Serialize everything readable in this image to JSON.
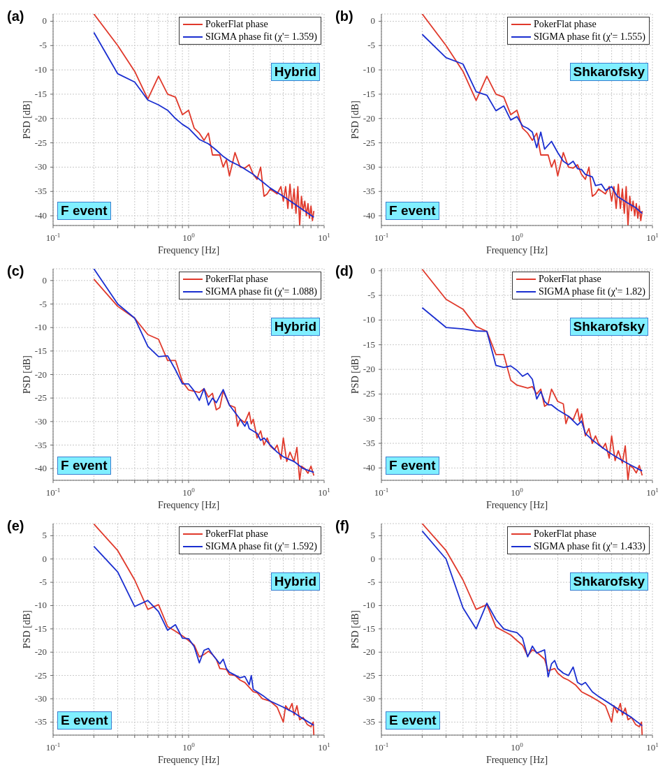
{
  "chart_data": [
    {
      "type": "line",
      "title": "(a)",
      "xlabel": "Frequency [Hz]",
      "ylabel": "PSD [dB]",
      "log": "x",
      "xlim": [
        0.1,
        10
      ],
      "xticks": [
        {
          "value": 0.1,
          "label": "10$^{-1}$"
        },
        {
          "value": 0.2,
          "label": null
        },
        {
          "value": 0.3,
          "label": null
        },
        {
          "value": 0.4,
          "label": null
        },
        {
          "value": 0.5,
          "label": null
        },
        {
          "value": 0.6,
          "label": null
        },
        {
          "value": 0.7,
          "label": null
        },
        {
          "value": 0.8,
          "label": null
        },
        {
          "value": 0.9,
          "label": null
        },
        {
          "value": 1,
          "label": "10$^{0}$"
        },
        {
          "value": 2,
          "label": null
        },
        {
          "value": 3,
          "label": null
        },
        {
          "value": 4,
          "label": null
        },
        {
          "value": 5,
          "label": null
        },
        {
          "value": 6,
          "label": null
        },
        {
          "value": 7,
          "label": null
        },
        {
          "value": 8,
          "label": null
        },
        {
          "value": 9,
          "label": null
        },
        {
          "value": 10,
          "label": "10$^{1}$"
        }
      ],
      "ylim": [
        -42,
        1.5
      ],
      "yticks": [
        -40,
        -35,
        -30,
        -25,
        -20,
        -15,
        -10,
        -5,
        0
      ],
      "grid": true,
      "legend": "top right",
      "line_style": "solid",
      "marker": "none",
      "annotations": [
        "Hybrid",
        "F event"
      ],
      "series": [
        {
          "name": "PokerFlat phase",
          "color": "#e0392b",
          "x": [
            0.2,
            0.3,
            0.4,
            0.5,
            0.6,
            0.7,
            0.8,
            0.9,
            1.0,
            1.1,
            1.2,
            1.3,
            1.4,
            1.5,
            1.7,
            1.8,
            1.9,
            2.0,
            2.2,
            2.4,
            2.6,
            2.8,
            3.0,
            3.2,
            3.4,
            3.6,
            3.8,
            4.0,
            4.5,
            4.8,
            5.0,
            5.2,
            5.4,
            5.6,
            5.8,
            6.0,
            6.2,
            6.4,
            6.6,
            6.8,
            7.0,
            7.2,
            7.4,
            7.6,
            7.8,
            8.0,
            8.2,
            8.4
          ],
          "values": [
            1.5,
            -5,
            -10.3,
            -16,
            -11.3,
            -15,
            -15.6,
            -19.2,
            -18.3,
            -22,
            -23,
            -24.5,
            -23,
            -27.5,
            -27.5,
            -30,
            -28.5,
            -31.8,
            -27,
            -30,
            -30.2,
            -29.5,
            -31.5,
            -32.5,
            -30,
            -36,
            -35.5,
            -34.5,
            -35.5,
            -34,
            -37,
            -34,
            -38.5,
            -33.5,
            -38.5,
            -34.5,
            -39.5,
            -34,
            -42,
            -36,
            -39,
            -37,
            -40,
            -37.5,
            -40.5,
            -38,
            -41,
            -39
          ]
        },
        {
          "name": "SIGMA phase fit (χ'= 1.359)",
          "color": "#1a2ed0",
          "x": [
            0.2,
            0.3,
            0.4,
            0.5,
            0.6,
            0.7,
            0.8,
            0.9,
            1.0,
            1.2,
            1.4,
            1.6,
            1.8,
            2.0,
            2.4,
            3.0,
            3.5,
            4.0,
            5.0,
            6.0,
            7.0,
            8.4
          ],
          "values": [
            -2.3,
            -10.8,
            -12.5,
            -16.2,
            -17.2,
            -18.3,
            -20,
            -21.2,
            -22,
            -24.3,
            -25.2,
            -26.5,
            -27.8,
            -28.7,
            -29.8,
            -31.5,
            -33,
            -34.3,
            -36,
            -37.5,
            -38.8,
            -40.3
          ]
        }
      ]
    },
    {
      "type": "line",
      "title": "(b)",
      "xlabel": "Frequency [Hz]",
      "ylabel": "PSD [dB]",
      "log": "x",
      "xlim": [
        0.1,
        10
      ],
      "xticks": [
        {
          "value": 0.1,
          "label": "10$^{-1}$"
        },
        {
          "value": 0.2,
          "label": null
        },
        {
          "value": 0.3,
          "label": null
        },
        {
          "value": 0.4,
          "label": null
        },
        {
          "value": 0.5,
          "label": null
        },
        {
          "value": 0.6,
          "label": null
        },
        {
          "value": 0.7,
          "label": null
        },
        {
          "value": 0.8,
          "label": null
        },
        {
          "value": 0.9,
          "label": null
        },
        {
          "value": 1,
          "label": "10$^{0}$"
        },
        {
          "value": 2,
          "label": null
        },
        {
          "value": 3,
          "label": null
        },
        {
          "value": 4,
          "label": null
        },
        {
          "value": 5,
          "label": null
        },
        {
          "value": 6,
          "label": null
        },
        {
          "value": 7,
          "label": null
        },
        {
          "value": 8,
          "label": null
        },
        {
          "value": 9,
          "label": null
        },
        {
          "value": 10,
          "label": "10$^{1}$"
        }
      ],
      "ylim": [
        -42,
        1.5
      ],
      "yticks": [
        -40,
        -35,
        -30,
        -25,
        -20,
        -15,
        -10,
        -5,
        0
      ],
      "grid": true,
      "legend": "top right",
      "line_style": "solid",
      "marker": "none",
      "annotations": [
        "Shkarofsky",
        "F event"
      ],
      "series": [
        {
          "name": "PokerFlat phase",
          "color": "#e0392b",
          "x": [
            0.2,
            0.3,
            0.4,
            0.5,
            0.6,
            0.7,
            0.8,
            0.9,
            1.0,
            1.1,
            1.2,
            1.3,
            1.4,
            1.5,
            1.7,
            1.8,
            1.9,
            2.0,
            2.2,
            2.4,
            2.6,
            2.8,
            3.0,
            3.2,
            3.4,
            3.6,
            3.8,
            4.0,
            4.5,
            4.8,
            5.0,
            5.2,
            5.4,
            5.6,
            5.8,
            6.0,
            6.2,
            6.4,
            6.6,
            6.8,
            7.0,
            7.2,
            7.4,
            7.6,
            7.8,
            8.0,
            8.2,
            8.4
          ],
          "values": [
            1.5,
            -5,
            -10.3,
            -16.3,
            -11.3,
            -15,
            -15.6,
            -19.2,
            -18.3,
            -22,
            -23,
            -24.5,
            -23,
            -27.5,
            -27.5,
            -30,
            -28.5,
            -31.8,
            -27,
            -30,
            -30.2,
            -29.5,
            -31.5,
            -32.5,
            -30,
            -36,
            -35.5,
            -34.5,
            -35.5,
            -34,
            -37,
            -34,
            -38.5,
            -33.5,
            -38.5,
            -34.5,
            -39.5,
            -34,
            -42,
            -36,
            -39,
            -37,
            -40,
            -37.5,
            -40.5,
            -38,
            -41,
            -39
          ]
        },
        {
          "name": "SIGMA phase fit (χ'= 1.555)",
          "color": "#1a2ed0",
          "x": [
            0.2,
            0.3,
            0.4,
            0.5,
            0.6,
            0.7,
            0.8,
            0.9,
            1.0,
            1.1,
            1.2,
            1.3,
            1.4,
            1.5,
            1.6,
            1.8,
            2.0,
            2.2,
            2.4,
            2.6,
            2.8,
            3.0,
            3.2,
            3.6,
            3.8,
            4.2,
            4.5,
            5.0,
            5.5,
            6.5,
            7.5,
            8.4
          ],
          "values": [
            -2.7,
            -7.5,
            -8.8,
            -14.5,
            -15.2,
            -18.4,
            -17.4,
            -20.3,
            -19.6,
            -21.5,
            -22,
            -22.8,
            -26,
            -22.8,
            -26.3,
            -24.7,
            -27,
            -28.8,
            -29.5,
            -28.8,
            -30.3,
            -30.5,
            -31.5,
            -32,
            -33.8,
            -33.5,
            -34.8,
            -34,
            -36,
            -37.3,
            -38.3,
            -39.5
          ]
        }
      ]
    },
    {
      "type": "line",
      "title": "(c)",
      "xlabel": "Frequency [Hz]",
      "ylabel": "PSD [dB]",
      "log": "x",
      "xlim": [
        0.1,
        10
      ],
      "xticks": [
        {
          "value": 0.1,
          "label": "10$^{-1}$"
        },
        {
          "value": 0.2,
          "label": null
        },
        {
          "value": 0.3,
          "label": null
        },
        {
          "value": 0.4,
          "label": null
        },
        {
          "value": 0.5,
          "label": null
        },
        {
          "value": 0.6,
          "label": null
        },
        {
          "value": 0.7,
          "label": null
        },
        {
          "value": 0.8,
          "label": null
        },
        {
          "value": 0.9,
          "label": null
        },
        {
          "value": 1,
          "label": "10$^{0}$"
        },
        {
          "value": 2,
          "label": null
        },
        {
          "value": 3,
          "label": null
        },
        {
          "value": 4,
          "label": null
        },
        {
          "value": 5,
          "label": null
        },
        {
          "value": 6,
          "label": null
        },
        {
          "value": 7,
          "label": null
        },
        {
          "value": 8,
          "label": null
        },
        {
          "value": 9,
          "label": null
        },
        {
          "value": 10,
          "label": "10$^{1}$"
        }
      ],
      "ylim": [
        -42.5,
        2.5
      ],
      "yticks": [
        -40,
        -35,
        -30,
        -25,
        -20,
        -15,
        -10,
        -5,
        0
      ],
      "grid": true,
      "legend": "top right",
      "line_style": "solid",
      "marker": "none",
      "annotations": [
        "Hybrid",
        "F event"
      ],
      "series": [
        {
          "name": "PokerFlat phase",
          "color": "#e0392b",
          "x": [
            0.2,
            0.3,
            0.4,
            0.5,
            0.6,
            0.7,
            0.8,
            0.9,
            1.0,
            1.2,
            1.3,
            1.4,
            1.5,
            1.6,
            1.7,
            1.8,
            2.0,
            2.2,
            2.3,
            2.4,
            2.6,
            2.8,
            2.9,
            3.0,
            3.2,
            3.4,
            3.6,
            3.8,
            4.0,
            4.3,
            4.5,
            4.8,
            5.0,
            5.3,
            5.6,
            6.0,
            6.3,
            6.6,
            6.8,
            7.2,
            7.6,
            8.0,
            8.4
          ],
          "values": [
            0.3,
            -5.5,
            -8,
            -11.5,
            -12.5,
            -17,
            -17,
            -21.5,
            -23.3,
            -23.8,
            -23,
            -24.8,
            -24,
            -27.5,
            -27,
            -23.5,
            -26.5,
            -27,
            -31,
            -29.5,
            -30.2,
            -28,
            -30.5,
            -29.5,
            -33.5,
            -32,
            -35,
            -33.5,
            -35.2,
            -36,
            -35,
            -38,
            -33.5,
            -38.5,
            -36.5,
            -38.5,
            -35.5,
            -42.5,
            -39.5,
            -40,
            -41,
            -39.5,
            -41.5
          ]
        },
        {
          "name": "SIGMA phase fit (χ'= 1.088)",
          "color": "#1a2ed0",
          "x": [
            0.2,
            0.3,
            0.4,
            0.5,
            0.6,
            0.7,
            0.8,
            0.9,
            1.0,
            1.1,
            1.2,
            1.3,
            1.4,
            1.5,
            1.6,
            1.8,
            2.0,
            2.4,
            2.6,
            2.7,
            2.8,
            3.2,
            3.4,
            3.6,
            4.0,
            4.5,
            5.0,
            6.0,
            7.0,
            8.4
          ],
          "values": [
            2.5,
            -5,
            -8,
            -14,
            -16.2,
            -16,
            -19,
            -22,
            -22,
            -23.5,
            -25.5,
            -23,
            -26.5,
            -25,
            -26,
            -23.2,
            -26.5,
            -29.5,
            -31,
            -30,
            -31.5,
            -32.5,
            -34,
            -33.5,
            -35,
            -36.5,
            -37.5,
            -38.5,
            -40,
            -40.8
          ]
        }
      ]
    },
    {
      "type": "line",
      "title": "(d)",
      "xlabel": "Frequency [Hz]",
      "ylabel": "PSD [dB]",
      "log": "x",
      "xlim": [
        0.1,
        10
      ],
      "xticks": [
        {
          "value": 0.1,
          "label": "10$^{-1}$"
        },
        {
          "value": 0.2,
          "label": null
        },
        {
          "value": 0.3,
          "label": null
        },
        {
          "value": 0.4,
          "label": null
        },
        {
          "value": 0.5,
          "label": null
        },
        {
          "value": 0.6,
          "label": null
        },
        {
          "value": 0.7,
          "label": null
        },
        {
          "value": 0.8,
          "label": null
        },
        {
          "value": 0.9,
          "label": null
        },
        {
          "value": 1,
          "label": "10$^{0}$"
        },
        {
          "value": 2,
          "label": null
        },
        {
          "value": 3,
          "label": null
        },
        {
          "value": 4,
          "label": null
        },
        {
          "value": 5,
          "label": null
        },
        {
          "value": 6,
          "label": null
        },
        {
          "value": 7,
          "label": null
        },
        {
          "value": 8,
          "label": null
        },
        {
          "value": 9,
          "label": null
        },
        {
          "value": 10,
          "label": "10$^{1}$"
        }
      ],
      "ylim": [
        -42.5,
        0.4
      ],
      "yticks": [
        -40,
        -35,
        -30,
        -25,
        -20,
        -15,
        -10,
        -5,
        0
      ],
      "grid": true,
      "legend": "top right",
      "line_style": "solid",
      "marker": "none",
      "annotations": [
        "Shkarofsky",
        "F event"
      ],
      "series": [
        {
          "name": "PokerFlat phase",
          "color": "#e0392b",
          "x": [
            0.2,
            0.3,
            0.4,
            0.5,
            0.6,
            0.7,
            0.8,
            0.9,
            1.0,
            1.2,
            1.3,
            1.4,
            1.5,
            1.6,
            1.7,
            1.8,
            2.0,
            2.2,
            2.3,
            2.4,
            2.6,
            2.8,
            2.9,
            3.0,
            3.2,
            3.4,
            3.6,
            3.8,
            4.0,
            4.3,
            4.5,
            4.8,
            5.0,
            5.3,
            5.6,
            6.0,
            6.3,
            6.6,
            6.8,
            7.2,
            7.6,
            8.0,
            8.4
          ],
          "values": [
            0.3,
            -5.8,
            -7.8,
            -11.3,
            -12.3,
            -17,
            -17,
            -22.2,
            -23.2,
            -23.8,
            -23.5,
            -25,
            -24,
            -27.5,
            -27,
            -24,
            -26.5,
            -27,
            -31,
            -29.5,
            -30.2,
            -28,
            -30.5,
            -29,
            -33.5,
            -32,
            -35,
            -33.5,
            -35,
            -36,
            -35,
            -38,
            -33.5,
            -38.5,
            -36.5,
            -39,
            -35.5,
            -42.5,
            -39.5,
            -40,
            -41,
            -39.5,
            -41.5
          ]
        },
        {
          "name": "SIGMA phase fit (χ'= 1.82)",
          "color": "#1a2ed0",
          "x": [
            0.2,
            0.3,
            0.4,
            0.5,
            0.6,
            0.7,
            0.8,
            0.9,
            1.0,
            1.1,
            1.2,
            1.3,
            1.4,
            1.5,
            1.6,
            1.7,
            1.8,
            2.0,
            2.4,
            2.8,
            3.0,
            3.2,
            3.6,
            4.0,
            5.0,
            6.0,
            7.0,
            8.4
          ],
          "values": [
            -7.5,
            -11.5,
            -11.8,
            -12.2,
            -12.3,
            -19.2,
            -19.6,
            -19.3,
            -20.2,
            -21.4,
            -20.8,
            -22,
            -26,
            -24.5,
            -26.5,
            -27.2,
            -27.2,
            -28.2,
            -29.5,
            -31.3,
            -30.5,
            -33,
            -34.3,
            -35.3,
            -37.2,
            -38.5,
            -39.5,
            -40.6
          ]
        }
      ]
    },
    {
      "type": "line",
      "title": "(e)",
      "xlabel": "Frequency [Hz]",
      "ylabel": "PSD [dB]",
      "log": "x",
      "xlim": [
        0.1,
        10
      ],
      "xticks": [
        {
          "value": 0.1,
          "label": "10$^{-1}$"
        },
        {
          "value": 0.2,
          "label": null
        },
        {
          "value": 0.3,
          "label": null
        },
        {
          "value": 0.4,
          "label": null
        },
        {
          "value": 0.5,
          "label": null
        },
        {
          "value": 0.6,
          "label": null
        },
        {
          "value": 0.7,
          "label": null
        },
        {
          "value": 0.8,
          "label": null
        },
        {
          "value": 0.9,
          "label": null
        },
        {
          "value": 1,
          "label": "10$^{0}$"
        },
        {
          "value": 2,
          "label": null
        },
        {
          "value": 3,
          "label": null
        },
        {
          "value": 4,
          "label": null
        },
        {
          "value": 5,
          "label": null
        },
        {
          "value": 6,
          "label": null
        },
        {
          "value": 7,
          "label": null
        },
        {
          "value": 8,
          "label": null
        },
        {
          "value": 9,
          "label": null
        },
        {
          "value": 10,
          "label": "10$^{1}$"
        }
      ],
      "ylim": [
        -37.8,
        7.6
      ],
      "yticks": [
        -35,
        -30,
        -25,
        -20,
        -15,
        -10,
        -5,
        0,
        5
      ],
      "grid": true,
      "legend": "top right",
      "line_style": "solid",
      "marker": "none",
      "annotations": [
        "Hybrid",
        "E event"
      ],
      "series": [
        {
          "name": "PokerFlat phase",
          "color": "#e0392b",
          "x": [
            0.2,
            0.3,
            0.4,
            0.5,
            0.6,
            0.7,
            0.8,
            0.9,
            1.0,
            1.1,
            1.2,
            1.3,
            1.4,
            1.5,
            1.6,
            1.7,
            1.9,
            2.0,
            2.2,
            2.4,
            2.6,
            3.0,
            3.2,
            3.5,
            4.0,
            4.5,
            5.0,
            5.2,
            5.5,
            5.8,
            6.0,
            6.3,
            6.6,
            7.0,
            7.5,
            8.0,
            8.3,
            8.4
          ],
          "values": [
            7.5,
            1.8,
            -4.5,
            -10.8,
            -9.8,
            -14.5,
            -15.5,
            -16.5,
            -17.5,
            -18.5,
            -21,
            -20.5,
            -19.8,
            -20.5,
            -21.5,
            -23.5,
            -23.7,
            -24.8,
            -25,
            -26,
            -26.5,
            -28.5,
            -28.7,
            -30,
            -30.5,
            -31.8,
            -35,
            -31.5,
            -32.5,
            -31,
            -33.5,
            -31.5,
            -34.5,
            -34,
            -35.5,
            -36,
            -35,
            -37.8
          ]
        },
        {
          "name": "SIGMA phase fit (χ'= 1.592)",
          "color": "#1a2ed0",
          "x": [
            0.2,
            0.3,
            0.4,
            0.5,
            0.6,
            0.7,
            0.8,
            0.9,
            1.0,
            1.1,
            1.2,
            1.3,
            1.4,
            1.5,
            1.7,
            1.8,
            1.9,
            2.0,
            2.4,
            2.6,
            2.8,
            2.9,
            3.0,
            3.2,
            3.6,
            4.0,
            5.0,
            6.0,
            7.0,
            8.4
          ],
          "values": [
            2.7,
            -2.8,
            -10.2,
            -8.9,
            -11.3,
            -15.3,
            -14.1,
            -17,
            -17.1,
            -18.8,
            -22.3,
            -19.6,
            -19.2,
            -20.5,
            -22.5,
            -21.5,
            -23.5,
            -24.3,
            -25.5,
            -25.2,
            -27,
            -25,
            -28,
            -28.5,
            -29.5,
            -30.5,
            -31.8,
            -33,
            -34.3,
            -35.7
          ]
        }
      ]
    },
    {
      "type": "line",
      "title": "(f)",
      "xlabel": "Frequency [Hz]",
      "ylabel": "PSD [dB]",
      "log": "x",
      "xlim": [
        0.1,
        10
      ],
      "xticks": [
        {
          "value": 0.1,
          "label": "10$^{-1}$"
        },
        {
          "value": 0.2,
          "label": null
        },
        {
          "value": 0.3,
          "label": null
        },
        {
          "value": 0.4,
          "label": null
        },
        {
          "value": 0.5,
          "label": null
        },
        {
          "value": 0.6,
          "label": null
        },
        {
          "value": 0.7,
          "label": null
        },
        {
          "value": 0.8,
          "label": null
        },
        {
          "value": 0.9,
          "label": null
        },
        {
          "value": 1,
          "label": "10$^{0}$"
        },
        {
          "value": 2,
          "label": null
        },
        {
          "value": 3,
          "label": null
        },
        {
          "value": 4,
          "label": null
        },
        {
          "value": 5,
          "label": null
        },
        {
          "value": 6,
          "label": null
        },
        {
          "value": 7,
          "label": null
        },
        {
          "value": 8,
          "label": null
        },
        {
          "value": 9,
          "label": null
        },
        {
          "value": 10,
          "label": "10$^{1}$"
        }
      ],
      "ylim": [
        -37.8,
        7.6
      ],
      "yticks": [
        -35,
        -30,
        -25,
        -20,
        -15,
        -10,
        -5,
        0,
        5
      ],
      "grid": true,
      "legend": "top right",
      "line_style": "solid",
      "marker": "none",
      "annotations": [
        "Shkarofsky",
        "E event"
      ],
      "series": [
        {
          "name": "PokerFlat phase",
          "color": "#e0392b",
          "x": [
            0.2,
            0.3,
            0.4,
            0.5,
            0.6,
            0.7,
            0.8,
            0.9,
            1.0,
            1.1,
            1.2,
            1.3,
            1.4,
            1.6,
            1.7,
            1.9,
            2.0,
            2.2,
            2.4,
            2.7,
            3.0,
            3.5,
            4.0,
            4.5,
            5.0,
            5.2,
            5.5,
            5.8,
            6.0,
            6.3,
            6.6,
            7.0,
            7.5,
            8.0,
            8.3,
            8.4
          ],
          "values": [
            7.6,
            1.8,
            -4.5,
            -10.8,
            -9.8,
            -14.6,
            -15.5,
            -16.3,
            -17.5,
            -18.5,
            -20.8,
            -19.5,
            -20,
            -21.5,
            -24,
            -23.5,
            -24.5,
            -25.5,
            -26,
            -27,
            -28.5,
            -29.5,
            -30.5,
            -31.5,
            -35,
            -31.5,
            -33,
            -31,
            -33.5,
            -32,
            -34.5,
            -34,
            -35.5,
            -36,
            -35,
            -37.8
          ]
        },
        {
          "name": "SIGMA phase fit (χ'= 1.433)",
          "color": "#1a2ed0",
          "x": [
            0.2,
            0.3,
            0.4,
            0.5,
            0.6,
            0.7,
            0.8,
            0.9,
            1.0,
            1.1,
            1.2,
            1.3,
            1.4,
            1.6,
            1.7,
            1.8,
            1.9,
            2.0,
            2.2,
            2.4,
            2.6,
            2.8,
            3.0,
            3.2,
            3.6,
            4.0,
            5.0,
            6.0,
            7.0,
            8.4
          ],
          "values": [
            6,
            0,
            -10.5,
            -15,
            -9.5,
            -13,
            -15,
            -15.5,
            -15.8,
            -17,
            -21,
            -18.7,
            -20.2,
            -19.5,
            -25.3,
            -22.5,
            -21.8,
            -23.5,
            -24.5,
            -25,
            -23.2,
            -26.5,
            -27,
            -26.5,
            -28.5,
            -29.5,
            -31.3,
            -32.8,
            -34,
            -35.8
          ]
        }
      ]
    }
  ]
}
